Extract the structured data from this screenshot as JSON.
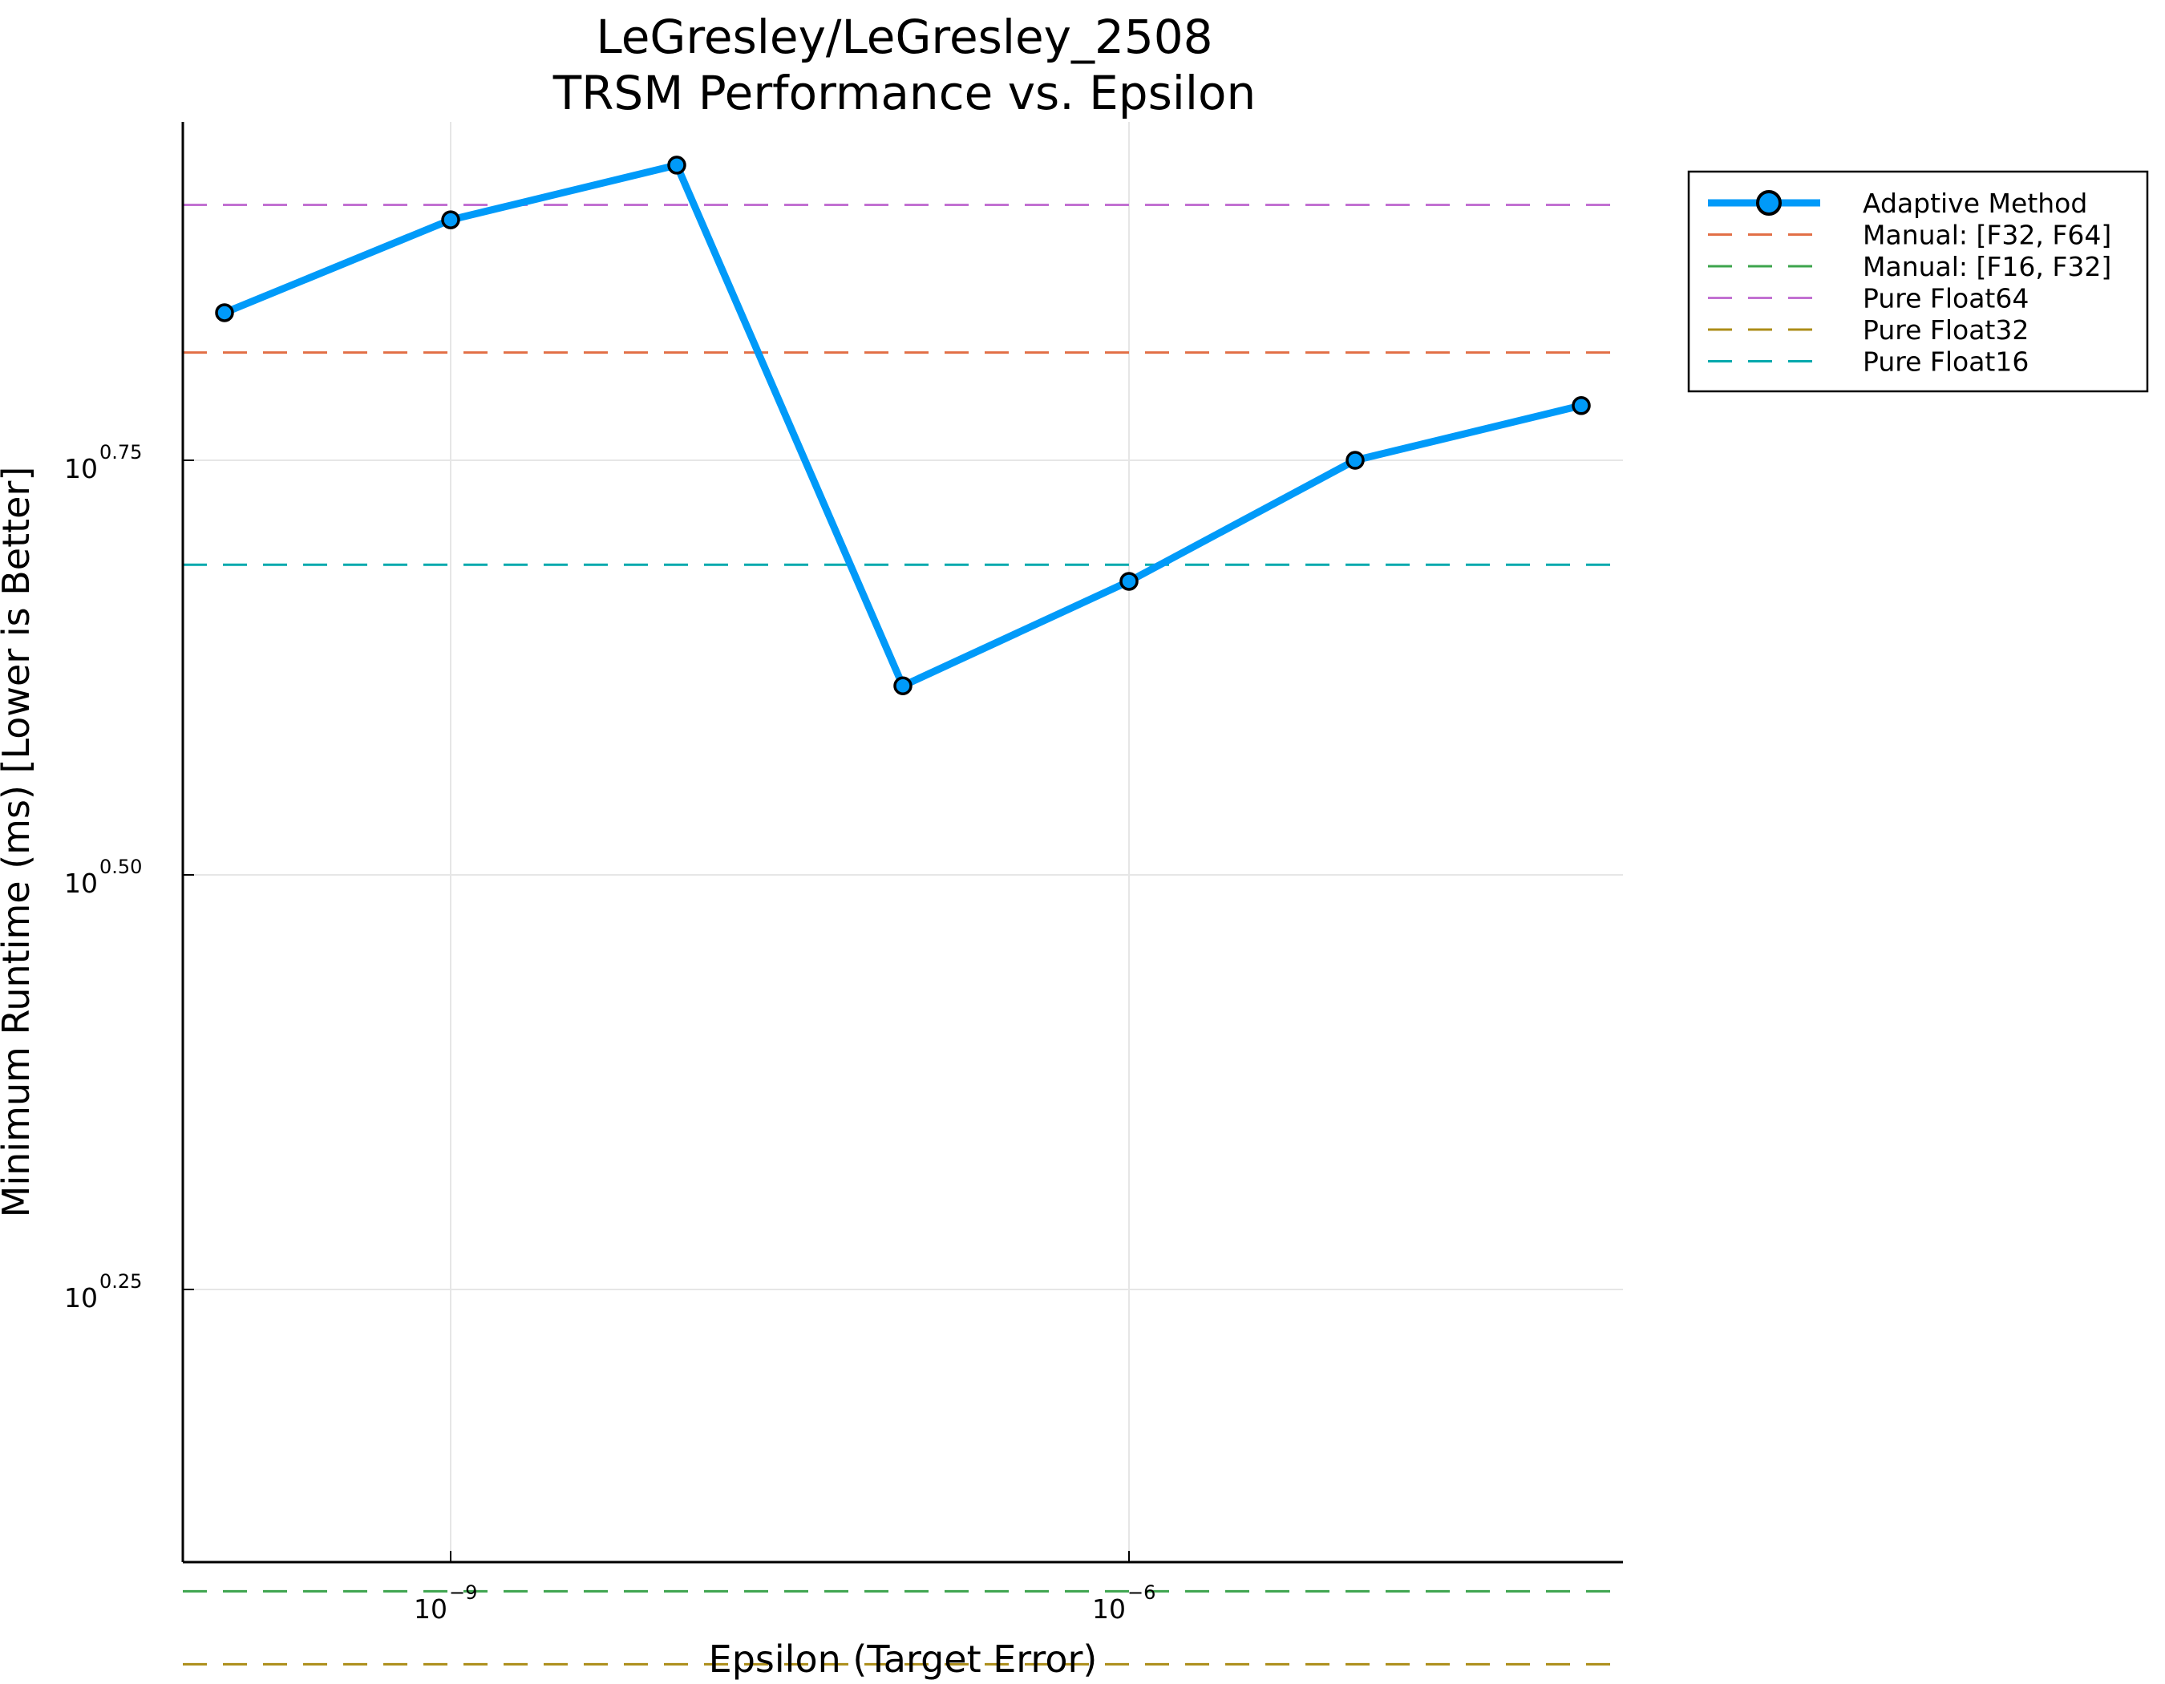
{
  "chart_data": {
    "type": "line",
    "title": "LeGresley/LeGresley_2508",
    "subtitle": "TRSM Performance vs. Epsilon",
    "xlabel": "Epsilon (Target Error)",
    "ylabel": "Minimum Runtime (ms) [Lower is Better]",
    "xscale": "log",
    "yscale": "log",
    "xlim_log10": [
      -10.17,
      -3.83
    ],
    "ylim_log10": [
      0.0,
      0.865
    ],
    "x_ticks": [
      {
        "base": "10",
        "exp": "−9",
        "log10": -9
      },
      {
        "base": "10",
        "exp": "−6",
        "log10": -6
      }
    ],
    "y_ticks": [
      {
        "base": "10",
        "exp": "0.25",
        "log10": 0.25
      },
      {
        "base": "10",
        "exp": "0.50",
        "log10": 0.5
      },
      {
        "base": "10",
        "exp": "0.75",
        "log10": 0.75
      }
    ],
    "grid": true,
    "legend_position": "top-right (outside)",
    "series": [
      {
        "name": "Adaptive Method",
        "style": "solid-markers",
        "color": "#009af9",
        "x_log10": [
          -10,
          -9,
          -8,
          -7,
          -6,
          -5,
          -4
        ],
        "y_log10": [
          0.839,
          0.895,
          0.928,
          0.614,
          0.677,
          0.75,
          0.783
        ]
      },
      {
        "name": "Manual: [F32, F64]",
        "style": "dashed-hline",
        "color": "#e26f46",
        "y_log10": 0.815
      },
      {
        "name": "Manual: [F16, F32]",
        "style": "dashed-hline",
        "color": "#3da44d",
        "y_log10": 0.068
      },
      {
        "name": "Pure Float64",
        "style": "dashed-hline",
        "color": "#c271d2",
        "y_log10": 0.904
      },
      {
        "name": "Pure Float32",
        "style": "dashed-hline",
        "color": "#ac8d18",
        "y_log10": 0.024
      },
      {
        "name": "Pure Float16",
        "style": "dashed-hline",
        "color": "#00a9ad",
        "y_log10": 0.687
      }
    ]
  }
}
